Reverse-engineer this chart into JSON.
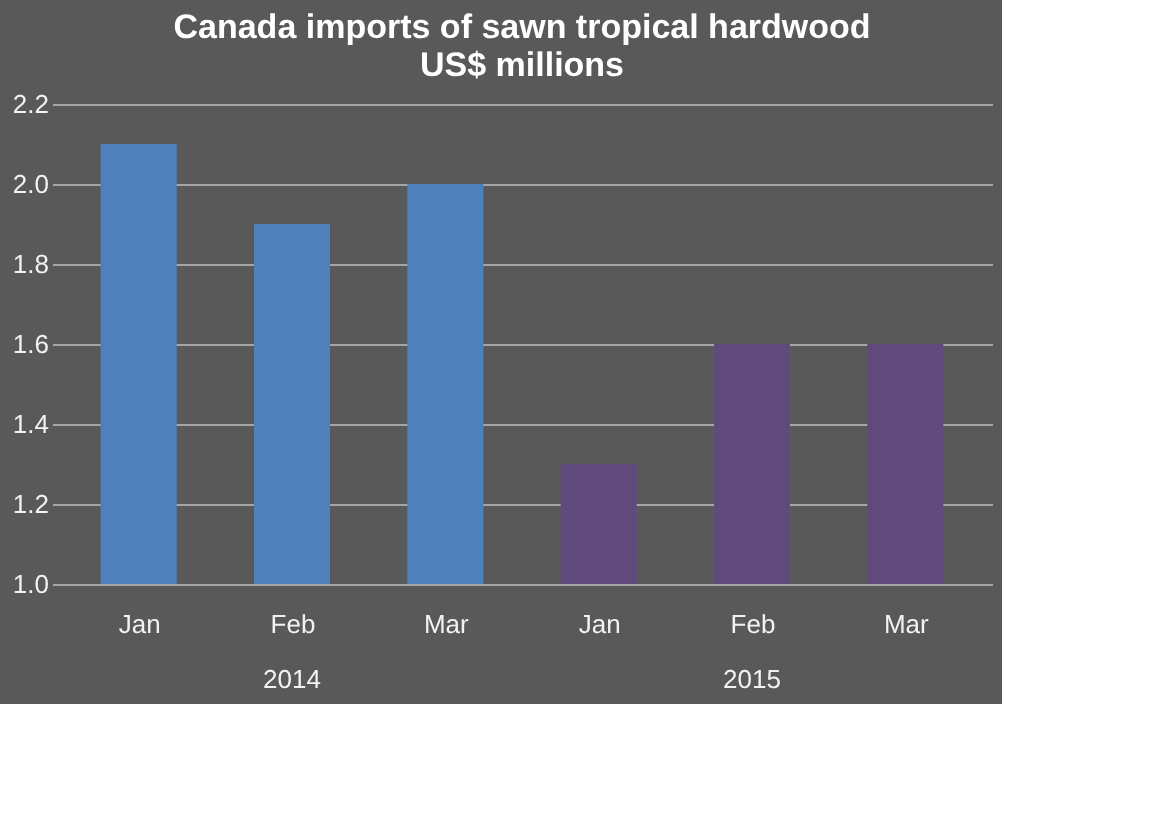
{
  "chart_data": {
    "type": "bar",
    "title": "Canada imports of sawn tropical hardwood\nUS$ millions",
    "categories": [
      "Jan",
      "Feb",
      "Mar",
      "Jan",
      "Feb",
      "Mar"
    ],
    "series": [
      {
        "color": "#4f81bd",
        "values": [
          2.1,
          1.9,
          2.0,
          null,
          null,
          null
        ]
      },
      {
        "color": "#604a7b",
        "values": [
          null,
          null,
          null,
          1.3,
          1.6,
          1.6
        ]
      }
    ],
    "annotations": [
      "2014",
      "2015"
    ],
    "ylim": [
      1.0,
      2.2
    ],
    "yticks": [
      {
        "value": 1.0,
        "label": "1.0"
      },
      {
        "value": 1.2,
        "label": "1.2"
      },
      {
        "value": 1.4,
        "label": "1.4"
      },
      {
        "value": 1.6,
        "label": "1.6"
      },
      {
        "value": 1.8,
        "label": "1.8"
      },
      {
        "value": 2.0,
        "label": "2.0"
      },
      {
        "value": 2.2,
        "label": "2.2"
      }
    ],
    "grid": "y"
  }
}
